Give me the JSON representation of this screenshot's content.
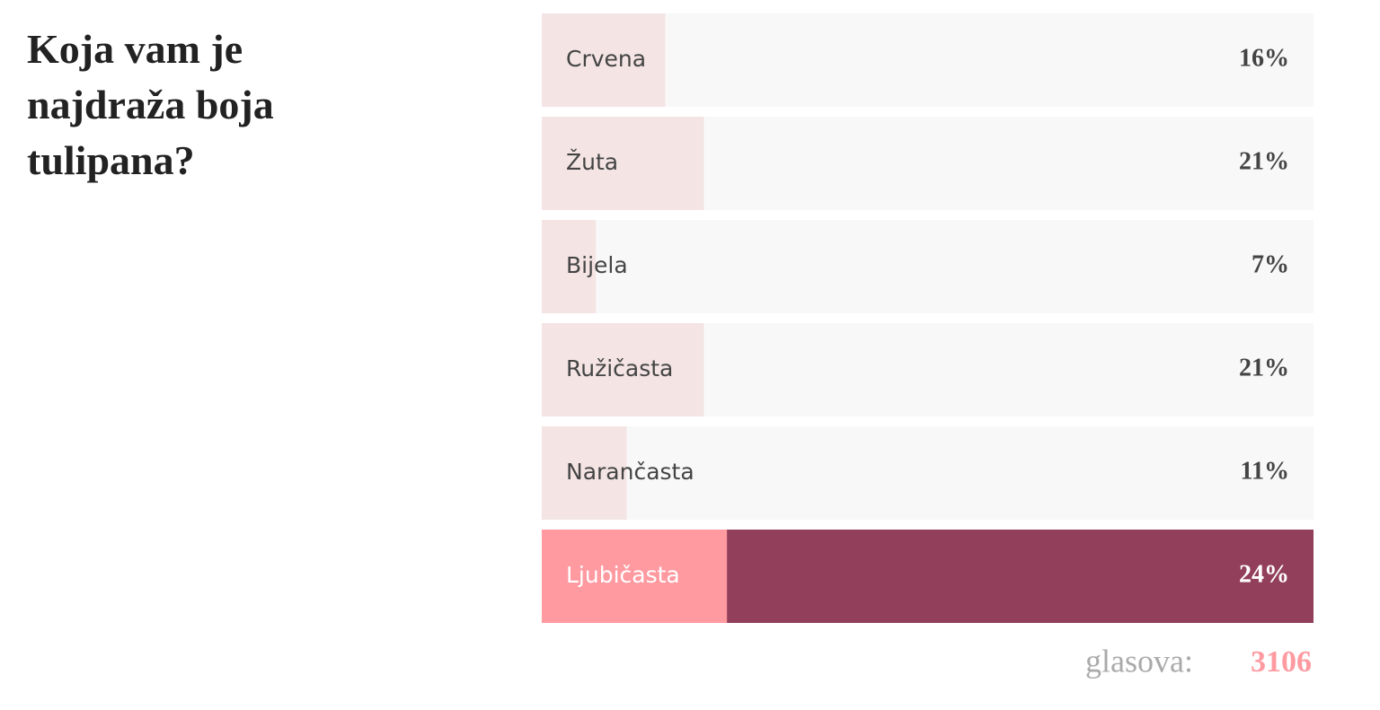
{
  "chart_data": {
    "type": "poll",
    "title": "Koja vam je najdraža boja tulipana?",
    "categories": [
      "Crvena",
      "Žuta",
      "Bijela",
      "Ružičasta",
      "Narančasta",
      "Ljubičasta"
    ],
    "values": [
      16,
      21,
      7,
      21,
      11,
      24
    ],
    "value_labels": [
      "16%",
      "21%",
      "7%",
      "21%",
      "11%",
      "24%"
    ],
    "xlim": [
      0,
      100
    ],
    "highlight": [
      false,
      false,
      false,
      false,
      false,
      true
    ],
    "color": "#f4e4e4",
    "track_color": "#f8f8f8",
    "highlight_color": "#ff9aa1",
    "highlight_track_color": "#923f5b",
    "votes_label": "glasova:",
    "votes": 3106
  }
}
